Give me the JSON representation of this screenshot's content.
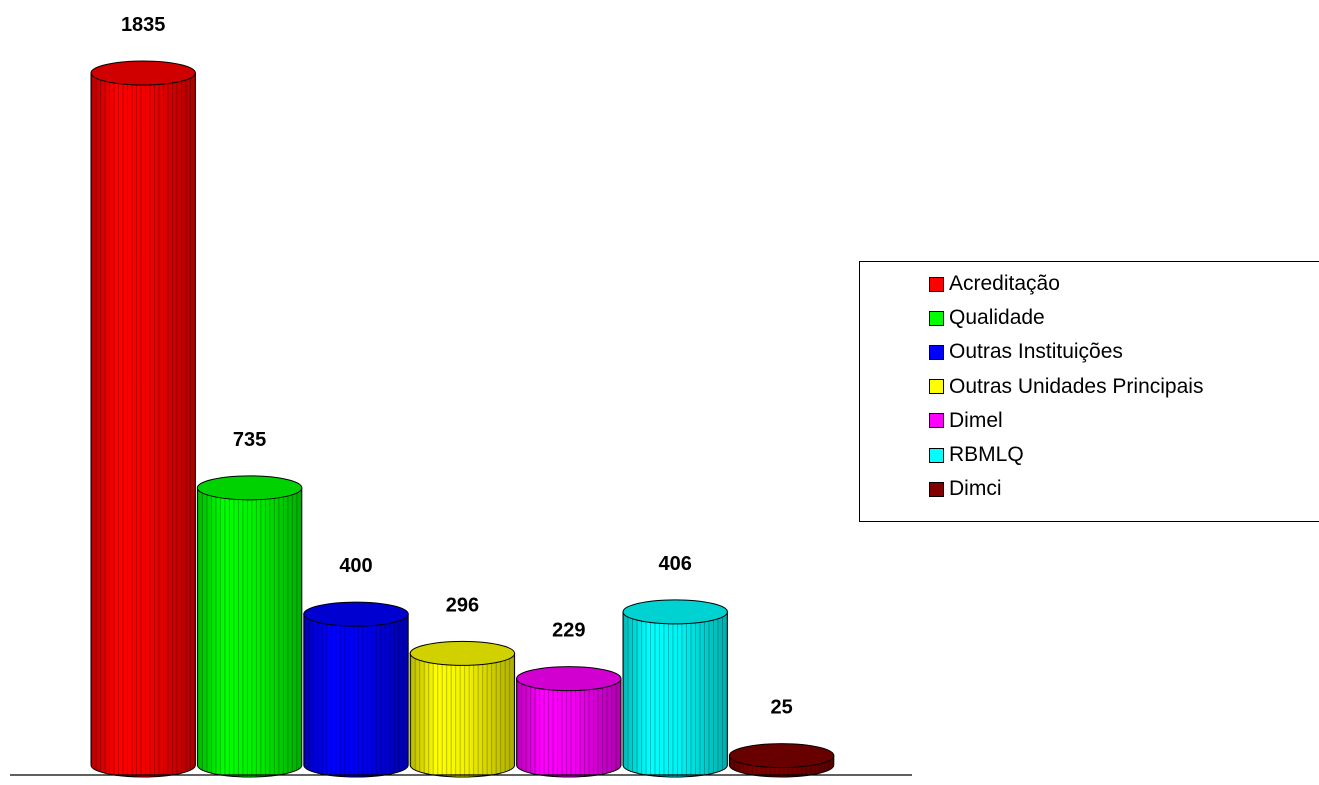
{
  "chart_data": {
    "type": "bar",
    "style": "3d-cylinder",
    "categories": [
      "Acreditação",
      "Qualidade",
      "Outras Instituições",
      "Outras Unidades Principais",
      "Dimel",
      "RBMLQ",
      "Dimci"
    ],
    "values": [
      1835,
      735,
      400,
      296,
      229,
      406,
      25
    ],
    "value_labels": [
      "1835",
      "735",
      "400",
      "296",
      "229",
      "406",
      "25"
    ],
    "colors": [
      "#ff0000",
      "#00ff00",
      "#0000ff",
      "#ffff00",
      "#ff00ff",
      "#00ffff",
      "#800000"
    ],
    "legend_position": "right",
    "grid": false,
    "ylim": [
      0,
      1835
    ]
  },
  "legend": {
    "items": [
      {
        "label": "Acreditação",
        "color": "#ff0000"
      },
      {
        "label": "Qualidade",
        "color": "#00ff00"
      },
      {
        "label": "Outras Instituições",
        "color": "#0000ff"
      },
      {
        "label": "Outras Unidades Principais",
        "color": "#ffff00"
      },
      {
        "label": "Dimel",
        "color": "#ff00ff"
      },
      {
        "label": "RBMLQ",
        "color": "#00ffff"
      },
      {
        "label": "Dimci",
        "color": "#800000"
      }
    ]
  }
}
